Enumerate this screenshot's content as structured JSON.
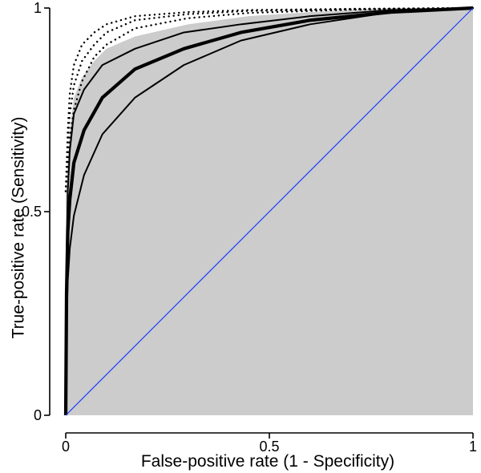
{
  "chart_data": {
    "type": "line",
    "title": "",
    "xlabel": "False-positive rate  (1 - Specificity)",
    "ylabel": "True-positive rate  (Sensitivity)",
    "xlim": [
      0,
      1
    ],
    "ylim": [
      0,
      1
    ],
    "x_ticks": [
      {
        "value": 0,
        "label": "0"
      },
      {
        "value": 0.5,
        "label": "0.5"
      },
      {
        "value": 1,
        "label": "1"
      }
    ],
    "y_ticks": [
      {
        "value": 0,
        "label": "0"
      },
      {
        "value": 0.5,
        "label": "0.5"
      },
      {
        "value": 1,
        "label": "1"
      }
    ],
    "grid": false,
    "legend": "none",
    "colors": {
      "shade": "#cccccc",
      "curve": "#000000",
      "diagonal": "#1a3cff"
    },
    "shaded_region": [
      [
        0,
        0
      ],
      [
        0,
        0.55
      ],
      [
        0.01,
        0.7
      ],
      [
        0.02,
        0.78
      ],
      [
        0.04,
        0.83
      ],
      [
        0.07,
        0.87
      ],
      [
        0.1,
        0.9
      ],
      [
        0.17,
        0.93
      ],
      [
        0.3,
        0.96
      ],
      [
        0.45,
        0.98
      ],
      [
        0.6,
        0.99
      ],
      [
        0.8,
        1.0
      ],
      [
        1,
        1
      ],
      [
        1,
        0
      ]
    ],
    "series": [
      {
        "style": "solid-thick",
        "points": [
          [
            0,
            0
          ],
          [
            0.002,
            0.3
          ],
          [
            0.005,
            0.45
          ],
          [
            0.01,
            0.53
          ],
          [
            0.02,
            0.62
          ],
          [
            0.045,
            0.7
          ],
          [
            0.09,
            0.78
          ],
          [
            0.17,
            0.85
          ],
          [
            0.29,
            0.9
          ],
          [
            0.43,
            0.94
          ],
          [
            0.6,
            0.97
          ],
          [
            0.8,
            0.99
          ],
          [
            1,
            1
          ]
        ]
      },
      {
        "style": "solid",
        "points": [
          [
            0,
            0
          ],
          [
            0.002,
            0.38
          ],
          [
            0.005,
            0.55
          ],
          [
            0.01,
            0.65
          ],
          [
            0.02,
            0.74
          ],
          [
            0.045,
            0.8
          ],
          [
            0.09,
            0.86
          ],
          [
            0.17,
            0.9
          ],
          [
            0.29,
            0.94
          ],
          [
            0.43,
            0.96
          ],
          [
            0.6,
            0.98
          ],
          [
            0.8,
            0.995
          ],
          [
            1,
            1
          ]
        ]
      },
      {
        "style": "solid",
        "points": [
          [
            0,
            0
          ],
          [
            0.002,
            0.22
          ],
          [
            0.005,
            0.33
          ],
          [
            0.01,
            0.41
          ],
          [
            0.02,
            0.49
          ],
          [
            0.045,
            0.59
          ],
          [
            0.09,
            0.69
          ],
          [
            0.17,
            0.78
          ],
          [
            0.29,
            0.86
          ],
          [
            0.43,
            0.92
          ],
          [
            0.6,
            0.96
          ],
          [
            0.8,
            0.99
          ],
          [
            1,
            1
          ]
        ]
      },
      {
        "style": "dotted",
        "points": [
          [
            0,
            0.55
          ],
          [
            0.005,
            0.7
          ],
          [
            0.01,
            0.79
          ],
          [
            0.02,
            0.86
          ],
          [
            0.04,
            0.91
          ],
          [
            0.07,
            0.94
          ],
          [
            0.1,
            0.96
          ],
          [
            0.17,
            0.98
          ],
          [
            0.3,
            0.99
          ],
          [
            0.45,
            0.995
          ],
          [
            0.7,
            0.998
          ],
          [
            1,
            1
          ]
        ]
      },
      {
        "style": "dotted",
        "points": [
          [
            0,
            0.55
          ],
          [
            0.005,
            0.66
          ],
          [
            0.01,
            0.74
          ],
          [
            0.02,
            0.81
          ],
          [
            0.04,
            0.87
          ],
          [
            0.07,
            0.91
          ],
          [
            0.1,
            0.94
          ],
          [
            0.17,
            0.97
          ],
          [
            0.3,
            0.985
          ],
          [
            0.45,
            0.993
          ],
          [
            0.7,
            0.997
          ],
          [
            1,
            1
          ]
        ]
      },
      {
        "style": "dotted",
        "points": [
          [
            0,
            0.55
          ],
          [
            0.005,
            0.62
          ],
          [
            0.01,
            0.68
          ],
          [
            0.02,
            0.75
          ],
          [
            0.04,
            0.82
          ],
          [
            0.07,
            0.88
          ],
          [
            0.1,
            0.91
          ],
          [
            0.17,
            0.95
          ],
          [
            0.3,
            0.975
          ],
          [
            0.45,
            0.988
          ],
          [
            0.7,
            0.996
          ],
          [
            1,
            1
          ]
        ]
      },
      {
        "style": "diagonal",
        "points": [
          [
            0,
            0
          ],
          [
            1,
            1
          ]
        ]
      }
    ]
  }
}
